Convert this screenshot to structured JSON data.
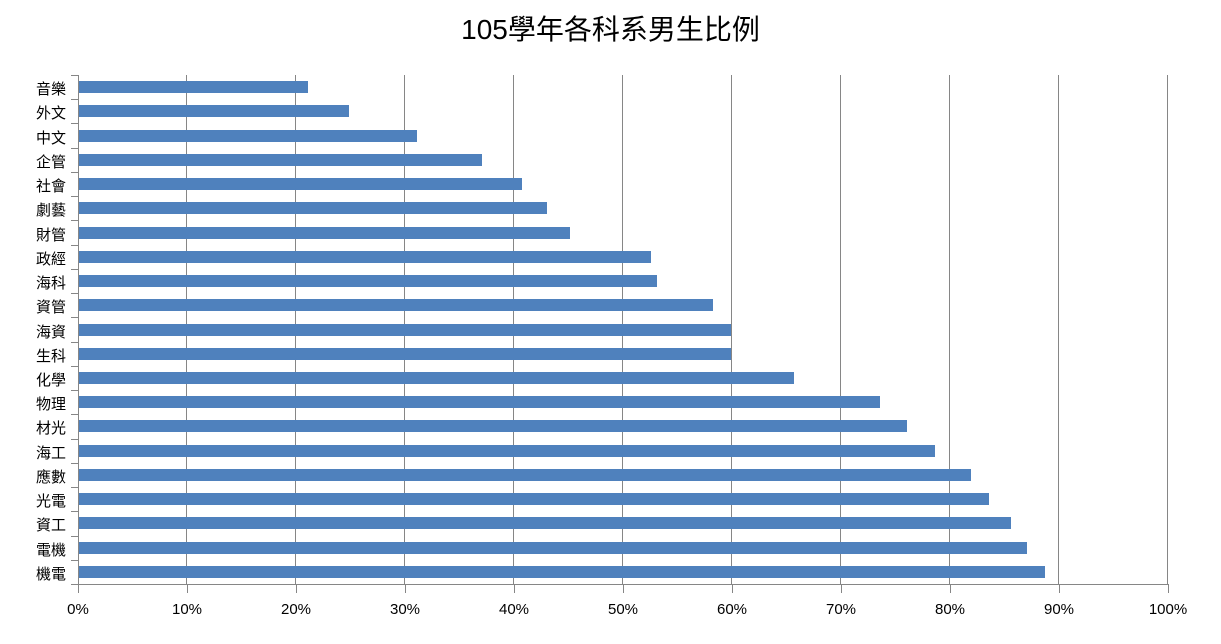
{
  "chart_data": {
    "type": "bar",
    "orientation": "horizontal",
    "title": "105學年各科系男生比例",
    "categories": [
      "音樂",
      "外文",
      "中文",
      "企管",
      "社會",
      "劇藝",
      "財管",
      "政經",
      "海科",
      "資管",
      "海資",
      "生科",
      "化學",
      "物理",
      "材光",
      "海工",
      "應數",
      "光電",
      "資工",
      "電機",
      "機電"
    ],
    "values": [
      21.0,
      24.8,
      31.0,
      37.0,
      40.6,
      42.9,
      45.0,
      52.5,
      53.0,
      58.2,
      59.8,
      59.8,
      65.6,
      73.5,
      76.0,
      78.5,
      81.8,
      83.5,
      85.5,
      87.0,
      88.6
    ],
    "value_unit": "%",
    "xlim": [
      0,
      100
    ],
    "xticks": [
      "0%",
      "10%",
      "20%",
      "30%",
      "40%",
      "50%",
      "60%",
      "70%",
      "80%",
      "90%",
      "100%"
    ],
    "xtick_step": 10,
    "grid": "vertical",
    "legend": "none",
    "colors": {
      "bar": "#4F81BD",
      "gridline": "#868686",
      "axis": "#868686",
      "text": "#000000",
      "background": "#FFFFFF"
    }
  }
}
